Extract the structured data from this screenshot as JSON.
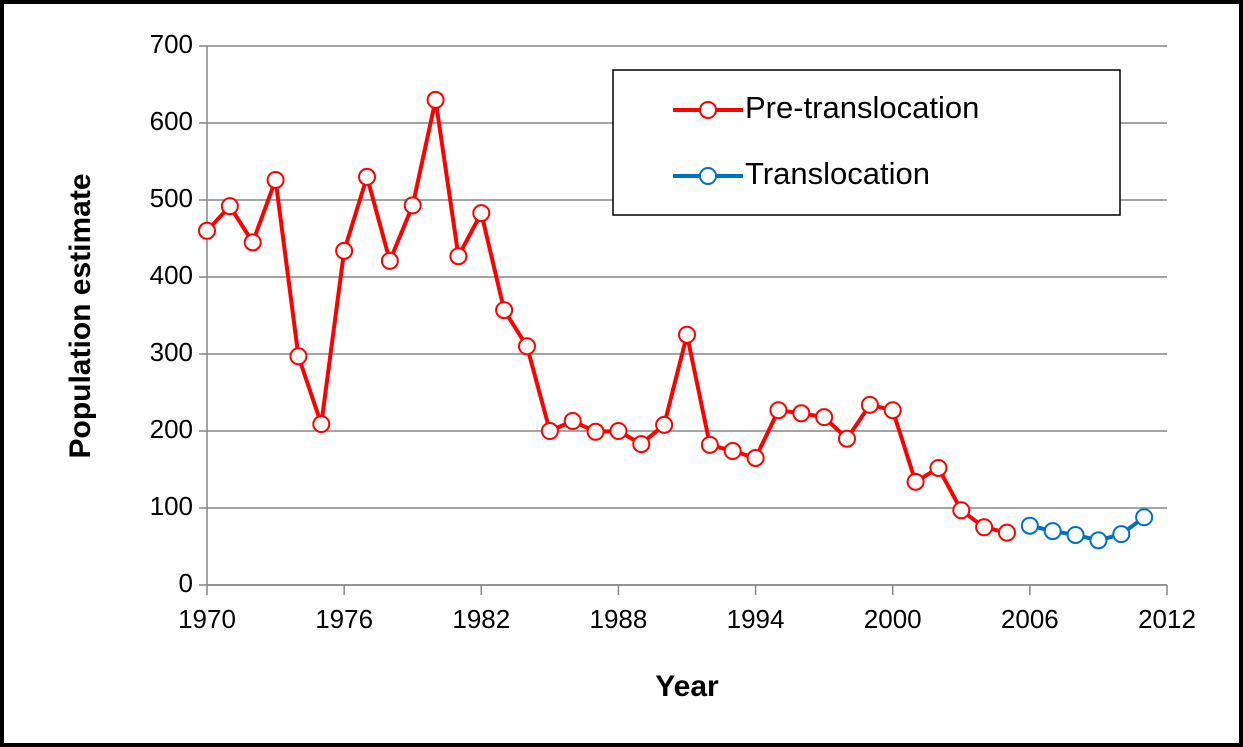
{
  "chart_data": {
    "type": "line",
    "xlabel": "Year",
    "ylabel": "Population estimate",
    "xlim": [
      1970,
      2012
    ],
    "xticks": [
      1970,
      1976,
      1982,
      1988,
      1994,
      2000,
      2006,
      2012
    ],
    "ylim": [
      0,
      700
    ],
    "yticks": [
      0,
      100,
      200,
      300,
      400,
      500,
      600,
      700
    ],
    "grid": true,
    "legend": "upper right",
    "series": [
      {
        "name": "Pre-translocation",
        "color": "#ff0000",
        "x": [
          1970,
          1971,
          1972,
          1973,
          1974,
          1975,
          1976,
          1977,
          1978,
          1979,
          1980,
          1981,
          1982,
          1983,
          1984,
          1985,
          1986,
          1987,
          1988,
          1989,
          1990,
          1991,
          1992,
          1993,
          1994,
          1995,
          1996,
          1997,
          1998,
          1999,
          2000,
          2001,
          2002,
          2003,
          2004,
          2005
        ],
        "values": [
          460,
          492,
          445,
          526,
          297,
          209,
          434,
          530,
          421,
          493,
          630,
          427,
          483,
          357,
          310,
          200,
          213,
          199,
          200,
          183,
          208,
          325,
          182,
          174,
          165,
          227,
          223,
          218,
          190,
          234,
          227,
          134,
          152,
          97,
          75,
          68
        ]
      },
      {
        "name": "Translocation",
        "color": "#0070c0",
        "x": [
          2006,
          2007,
          2008,
          2009,
          2010,
          2011
        ],
        "values": [
          77,
          70,
          65,
          58,
          66,
          88
        ]
      }
    ]
  }
}
